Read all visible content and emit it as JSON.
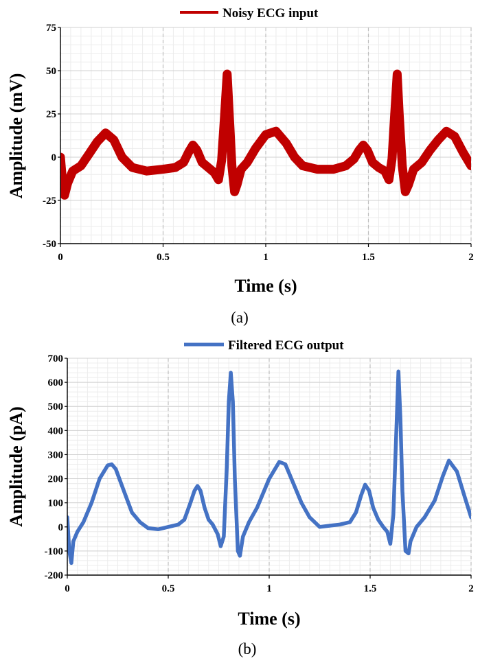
{
  "chart_data": [
    {
      "type": "line",
      "caption": "(a)",
      "xlabel": "Time (s)",
      "ylabel": "Amplitude (mV)",
      "xlim": [
        0,
        2
      ],
      "ylim": [
        -50,
        75
      ],
      "xticks": [
        "0",
        "0.5",
        "1",
        "1.5",
        "2"
      ],
      "yticks": [
        "-50",
        "-25",
        "0",
        "25",
        "50",
        "75"
      ],
      "grid": true,
      "legend_position": "top",
      "series": [
        {
          "name": "Noisy ECG input",
          "color": "#c00000",
          "band": "thick noisy envelope (approx. ±5 mV)",
          "x": [
            0,
            0.01,
            0.02,
            0.035,
            0.06,
            0.1,
            0.14,
            0.18,
            0.22,
            0.26,
            0.3,
            0.35,
            0.42,
            0.5,
            0.56,
            0.6,
            0.625,
            0.645,
            0.665,
            0.69,
            0.72,
            0.75,
            0.77,
            0.785,
            0.8,
            0.812,
            0.822,
            0.835,
            0.848,
            0.86,
            0.88,
            0.91,
            0.95,
            1.0,
            1.05,
            1.1,
            1.14,
            1.18,
            1.25,
            1.33,
            1.39,
            1.43,
            1.455,
            1.475,
            1.495,
            1.52,
            1.55,
            1.58,
            1.6,
            1.615,
            1.628,
            1.64,
            1.65,
            1.665,
            1.68,
            1.695,
            1.72,
            1.76,
            1.8,
            1.84,
            1.88,
            1.92,
            1.96,
            2.0
          ],
          "y": [
            0,
            -14,
            -22,
            -15,
            -8,
            -5,
            2,
            9,
            14,
            10,
            0,
            -6,
            -8,
            -7,
            -6,
            -3,
            3,
            7,
            4,
            -3,
            -6,
            -9,
            -13,
            -2,
            25,
            48,
            25,
            -5,
            -20,
            -16,
            -7,
            -3,
            5,
            13,
            15,
            8,
            0,
            -5,
            -7,
            -7,
            -5,
            -1,
            4,
            7,
            4,
            -3,
            -6,
            -8,
            -13,
            -1,
            25,
            48,
            25,
            -5,
            -20,
            -16,
            -7,
            -3,
            4,
            10,
            15,
            12,
            3,
            -5
          ]
        }
      ]
    },
    {
      "type": "line",
      "caption": "(b)",
      "xlabel": "Time (s)",
      "ylabel": "Amplitude (pA)",
      "xlim": [
        0,
        2
      ],
      "ylim": [
        -200,
        700
      ],
      "xticks": [
        "0",
        "0.5",
        "1",
        "1.5",
        "2"
      ],
      "yticks": [
        "-200",
        "-100",
        "0",
        "100",
        "200",
        "300",
        "400",
        "500",
        "600",
        "700"
      ],
      "grid": true,
      "legend_position": "top",
      "series": [
        {
          "name": "Filtered ECG output",
          "color": "#4472c4",
          "x": [
            0,
            0.01,
            0.02,
            0.03,
            0.05,
            0.08,
            0.12,
            0.16,
            0.2,
            0.22,
            0.24,
            0.28,
            0.32,
            0.36,
            0.4,
            0.45,
            0.5,
            0.55,
            0.58,
            0.61,
            0.63,
            0.645,
            0.66,
            0.68,
            0.7,
            0.72,
            0.745,
            0.76,
            0.775,
            0.79,
            0.8,
            0.81,
            0.82,
            0.83,
            0.845,
            0.855,
            0.87,
            0.9,
            0.94,
            1.0,
            1.05,
            1.08,
            1.12,
            1.16,
            1.2,
            1.25,
            1.3,
            1.35,
            1.4,
            1.43,
            1.455,
            1.475,
            1.495,
            1.515,
            1.54,
            1.565,
            1.585,
            1.6,
            1.615,
            1.63,
            1.64,
            1.65,
            1.66,
            1.675,
            1.69,
            1.7,
            1.73,
            1.77,
            1.82,
            1.86,
            1.89,
            1.93,
            1.97,
            2.0
          ],
          "y": [
            40,
            -100,
            -150,
            -60,
            -20,
            20,
            100,
            200,
            255,
            260,
            240,
            150,
            60,
            20,
            -5,
            -10,
            0,
            10,
            30,
            100,
            150,
            170,
            150,
            80,
            30,
            10,
            -30,
            -80,
            -40,
            250,
            520,
            640,
            520,
            200,
            -100,
            -120,
            -40,
            20,
            80,
            200,
            270,
            260,
            180,
            100,
            40,
            0,
            5,
            10,
            20,
            60,
            130,
            175,
            150,
            80,
            30,
            0,
            -20,
            -70,
            50,
            400,
            645,
            450,
            150,
            -100,
            -110,
            -60,
            0,
            40,
            110,
            210,
            275,
            230,
            120,
            40
          ]
        }
      ]
    }
  ]
}
